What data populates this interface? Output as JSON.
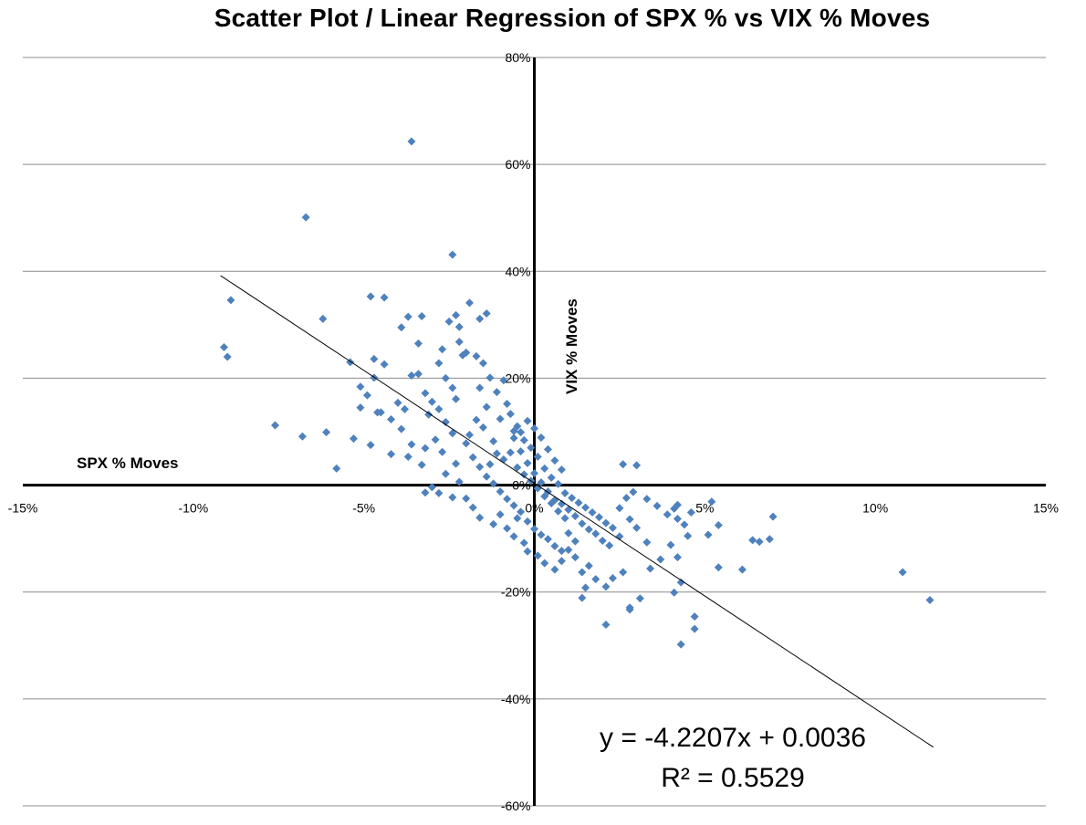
{
  "chart_data": {
    "type": "scatter",
    "title": "Scatter Plot / Linear Regression of SPX % vs VIX % Moves",
    "xlabel": "SPX % Moves",
    "ylabel": "VIX % Moves",
    "xlim": [
      -15,
      15
    ],
    "ylim": [
      -60,
      80
    ],
    "x_ticks": [
      "-15%",
      "-10%",
      "-5%",
      "0%",
      "5%",
      "10%",
      "15%"
    ],
    "y_ticks": [
      "80%",
      "60%",
      "40%",
      "20%",
      "0%",
      "-20%",
      "-40%",
      "-60%"
    ],
    "grid": true,
    "marker_color": "#4F81BD",
    "trendline": {
      "slope": -4.2207,
      "intercept": 0.0036,
      "x_range": [
        -9.2,
        11.7
      ]
    },
    "equation_text": "y = -4.2207x + 0.0036",
    "r2_text": "R² = 0.5529",
    "points": [
      [
        -3.6,
        64.3
      ],
      [
        -6.7,
        50.1
      ],
      [
        -2.4,
        43.1
      ],
      [
        -8.9,
        34.6
      ],
      [
        -9.1,
        25.8
      ],
      [
        -9.0,
        24.0
      ],
      [
        -7.6,
        11.2
      ],
      [
        -6.8,
        9.1
      ],
      [
        -6.2,
        31.1
      ],
      [
        -6.1,
        9.9
      ],
      [
        -5.8,
        3.1
      ],
      [
        -5.4,
        23.0
      ],
      [
        -5.1,
        18.4
      ],
      [
        -5.1,
        14.5
      ],
      [
        -4.9,
        16.8
      ],
      [
        -4.8,
        35.3
      ],
      [
        -4.7,
        20.1
      ],
      [
        -4.4,
        35.1
      ],
      [
        -4.4,
        22.6
      ],
      [
        -4.7,
        23.6
      ],
      [
        -4.6,
        13.6
      ],
      [
        -4.8,
        7.5
      ],
      [
        -4.5,
        13.6
      ],
      [
        -3.9,
        29.5
      ],
      [
        -3.7,
        31.5
      ],
      [
        -3.3,
        31.6
      ],
      [
        -3.4,
        26.5
      ],
      [
        -3.6,
        20.5
      ],
      [
        -3.4,
        20.8
      ],
      [
        -3.2,
        17.2
      ],
      [
        -4.0,
        15.4
      ],
      [
        -4.2,
        12.3
      ],
      [
        -4.2,
        5.8
      ],
      [
        -3.9,
        10.5
      ],
      [
        -3.6,
        7.6
      ],
      [
        -3.2,
        6.9
      ],
      [
        -3.3,
        3.8
      ],
      [
        -3.8,
        14.2
      ],
      [
        -5.3,
        8.7
      ],
      [
        -3.7,
        5.3
      ],
      [
        -3.1,
        13.2
      ],
      [
        -3.0,
        15.6
      ],
      [
        -2.8,
        22.8
      ],
      [
        -2.7,
        25.4
      ],
      [
        -2.5,
        30.6
      ],
      [
        -2.3,
        31.8
      ],
      [
        -2.2,
        29.6
      ],
      [
        -1.9,
        34.1
      ],
      [
        -1.6,
        31.1
      ],
      [
        -1.4,
        32.1
      ],
      [
        -2.1,
        24.3
      ],
      [
        -2.2,
        26.8
      ],
      [
        -2.0,
        24.8
      ],
      [
        -1.7,
        24.1
      ],
      [
        -1.5,
        22.8
      ],
      [
        -2.6,
        20.0
      ],
      [
        -2.4,
        18.2
      ],
      [
        -2.3,
        16.1
      ],
      [
        -2.8,
        14.2
      ],
      [
        -2.6,
        11.8
      ],
      [
        -2.4,
        9.7
      ],
      [
        -2.9,
        8.5
      ],
      [
        -2.7,
        6.2
      ],
      [
        -2.3,
        4.0
      ],
      [
        -2.6,
        2.1
      ],
      [
        -2.2,
        0.6
      ],
      [
        -2.8,
        -1.5
      ],
      [
        -2.4,
        -2.3
      ],
      [
        -3.2,
        -1.4
      ],
      [
        -3.0,
        -0.4
      ],
      [
        -2.0,
        -2.5
      ],
      [
        -1.8,
        -4.2
      ],
      [
        -1.6,
        -6.1
      ],
      [
        -1.2,
        -7.3
      ],
      [
        -1.0,
        -5.5
      ],
      [
        -0.8,
        -8.1
      ],
      [
        -0.6,
        -9.6
      ],
      [
        -0.5,
        -6.2
      ],
      [
        -0.3,
        -10.8
      ],
      [
        -0.2,
        -12.4
      ],
      [
        0.1,
        -13.2
      ],
      [
        0.3,
        -14.6
      ],
      [
        0.6,
        -15.8
      ],
      [
        0.8,
        -14.2
      ],
      [
        1.0,
        -12.1
      ],
      [
        1.2,
        -13.5
      ],
      [
        1.4,
        -16.3
      ],
      [
        1.6,
        -15.1
      ],
      [
        1.8,
        -17.6
      ],
      [
        1.5,
        -19.2
      ],
      [
        1.4,
        -21.1
      ],
      [
        2.1,
        -19.0
      ],
      [
        2.3,
        -17.4
      ],
      [
        2.6,
        -16.3
      ],
      [
        2.1,
        -26.1
      ],
      [
        2.8,
        -22.9
      ],
      [
        2.8,
        -23.3
      ],
      [
        3.1,
        -21.2
      ],
      [
        3.4,
        -15.6
      ],
      [
        3.7,
        -13.9
      ],
      [
        3.3,
        -10.7
      ],
      [
        3.0,
        -8.0
      ],
      [
        2.8,
        -6.4
      ],
      [
        2.5,
        -4.3
      ],
      [
        2.7,
        -2.4
      ],
      [
        2.9,
        -1.3
      ],
      [
        2.6,
        3.9
      ],
      [
        3.0,
        3.7
      ],
      [
        3.3,
        -2.6
      ],
      [
        3.6,
        -3.9
      ],
      [
        3.9,
        -5.5
      ],
      [
        4.1,
        -4.4
      ],
      [
        4.2,
        -6.3
      ],
      [
        4.4,
        -7.4
      ],
      [
        4.5,
        -9.5
      ],
      [
        4.0,
        -11.2
      ],
      [
        4.2,
        -13.5
      ],
      [
        4.3,
        -18.2
      ],
      [
        4.1,
        -20.1
      ],
      [
        4.3,
        -29.8
      ],
      [
        4.7,
        -24.6
      ],
      [
        4.7,
        -26.9
      ],
      [
        5.2,
        -3.1
      ],
      [
        5.1,
        -9.3
      ],
      [
        5.4,
        -7.5
      ],
      [
        5.4,
        -15.4
      ],
      [
        6.1,
        -15.8
      ],
      [
        6.4,
        -10.3
      ],
      [
        6.6,
        -10.6
      ],
      [
        6.9,
        -10.1
      ],
      [
        7.0,
        -5.9
      ],
      [
        4.2,
        -3.7
      ],
      [
        4.6,
        -5.1
      ],
      [
        10.8,
        -16.3
      ],
      [
        11.6,
        -21.5
      ],
      [
        -1.2,
        8.2
      ],
      [
        -1.0,
        12.4
      ],
      [
        -0.8,
        15.2
      ],
      [
        -0.6,
        10.1
      ],
      [
        -0.4,
        6.3
      ],
      [
        -0.2,
        4.1
      ],
      [
        0.0,
        2.2
      ],
      [
        0.2,
        0.5
      ],
      [
        0.4,
        -1.2
      ],
      [
        0.6,
        -2.8
      ],
      [
        0.8,
        -3.5
      ],
      [
        1.0,
        -4.6
      ],
      [
        1.2,
        -5.8
      ],
      [
        1.4,
        -7.2
      ],
      [
        1.6,
        -8.3
      ],
      [
        1.8,
        -9.1
      ],
      [
        2.0,
        -10.4
      ],
      [
        2.2,
        -11.3
      ],
      [
        -1.4,
        14.6
      ],
      [
        -1.6,
        18.2
      ],
      [
        -1.3,
        20.1
      ],
      [
        -1.1,
        17.4
      ],
      [
        -0.9,
        19.6
      ],
      [
        -0.7,
        13.3
      ],
      [
        -0.5,
        11.0
      ],
      [
        -0.3,
        8.4
      ],
      [
        -0.1,
        7.0
      ],
      [
        0.1,
        5.3
      ],
      [
        0.3,
        3.1
      ],
      [
        0.5,
        1.4
      ],
      [
        0.7,
        0.2
      ],
      [
        0.9,
        -1.5
      ],
      [
        1.1,
        -2.4
      ],
      [
        1.3,
        -3.3
      ],
      [
        1.5,
        -4.2
      ],
      [
        1.7,
        -5.1
      ],
      [
        1.9,
        -6.0
      ],
      [
        2.1,
        -7.1
      ],
      [
        2.3,
        -8.0
      ],
      [
        2.5,
        -9.6
      ],
      [
        -1.5,
        10.8
      ],
      [
        -1.7,
        12.2
      ],
      [
        -1.9,
        9.4
      ],
      [
        -2.0,
        7.8
      ],
      [
        -1.8,
        5.2
      ],
      [
        -1.6,
        3.4
      ],
      [
        -1.4,
        1.6
      ],
      [
        -1.2,
        0.3
      ],
      [
        -1.0,
        -1.2
      ],
      [
        -0.8,
        -2.6
      ],
      [
        -0.6,
        -3.8
      ],
      [
        -0.4,
        -5.0
      ],
      [
        -0.2,
        -6.8
      ],
      [
        0.0,
        -8.2
      ],
      [
        0.2,
        -9.3
      ],
      [
        0.4,
        -10.1
      ],
      [
        0.6,
        -11.4
      ],
      [
        0.8,
        -12.3
      ],
      [
        1.0,
        -9.0
      ],
      [
        1.2,
        -10.5
      ],
      [
        -0.9,
        4.8
      ],
      [
        -0.7,
        6.1
      ],
      [
        -0.5,
        3.3
      ],
      [
        -0.3,
        2.0
      ],
      [
        -0.1,
        0.8
      ],
      [
        0.1,
        -0.6
      ],
      [
        0.3,
        -2.1
      ],
      [
        0.5,
        -3.4
      ],
      [
        0.7,
        -4.9
      ],
      [
        0.9,
        -6.2
      ],
      [
        -1.1,
        5.9
      ],
      [
        -1.3,
        3.9
      ],
      [
        -0.6,
        8.8
      ],
      [
        -0.4,
        9.9
      ],
      [
        -0.2,
        12.0
      ],
      [
        0.0,
        10.6
      ],
      [
        0.2,
        8.9
      ],
      [
        0.4,
        6.7
      ],
      [
        0.6,
        4.6
      ],
      [
        0.8,
        2.9
      ]
    ]
  }
}
